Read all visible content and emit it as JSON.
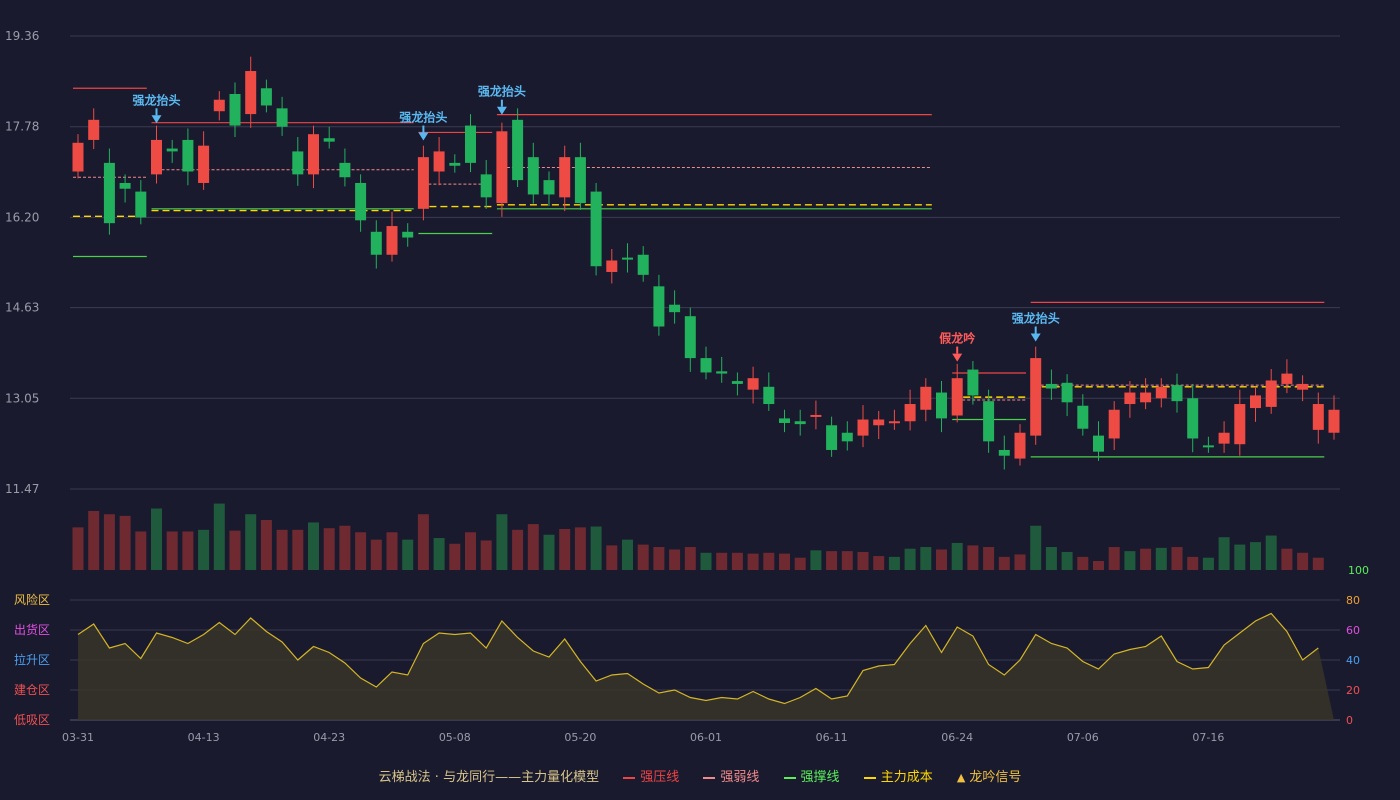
{
  "chart_data": {
    "type": "candlestick",
    "price_axis": {
      "ticks": [
        "19.36",
        "17.78",
        "16.20",
        "14.63",
        "13.05",
        "11.47"
      ],
      "range": [
        11.47,
        19.36
      ]
    },
    "x_tick_labels": [
      {
        "i": 0,
        "label": "03-31"
      },
      {
        "i": 8,
        "label": "04-13"
      },
      {
        "i": 16,
        "label": "04-23"
      },
      {
        "i": 24,
        "label": "05-08"
      },
      {
        "i": 32,
        "label": "05-20"
      },
      {
        "i": 40,
        "label": "06-01"
      },
      {
        "i": 48,
        "label": "06-11"
      },
      {
        "i": 56,
        "label": "06-24"
      },
      {
        "i": 64,
        "label": "07-06"
      },
      {
        "i": 72,
        "label": "07-16"
      }
    ],
    "candles": [
      [
        17.0,
        17.5,
        17.0,
        17.0
      ],
      [
        17.55,
        17.9,
        17.55,
        17.55
      ],
      [
        17.15,
        16.1,
        17.15,
        16.1
      ],
      [
        16.8,
        16.7,
        16.8,
        16.7
      ],
      [
        16.65,
        16.2,
        16.65,
        16.2
      ],
      [
        16.95,
        17.55,
        16.95,
        17.55
      ],
      [
        17.4,
        17.35,
        17.4,
        17.35
      ],
      [
        17.55,
        17.0,
        17.55,
        17.0
      ],
      [
        16.8,
        17.45,
        16.8,
        17.45
      ],
      [
        18.05,
        18.25,
        18.05,
        18.25
      ],
      [
        18.35,
        17.8,
        18.35,
        17.8
      ],
      [
        18.0,
        18.75,
        18.0,
        18.75
      ],
      [
        18.45,
        18.15,
        18.45,
        18.15
      ],
      [
        18.1,
        17.78,
        18.1,
        17.78
      ],
      [
        17.35,
        16.95,
        17.35,
        16.95
      ],
      [
        16.95,
        17.65,
        16.95,
        17.65
      ],
      [
        17.58,
        17.52,
        17.58,
        17.52
      ],
      [
        17.15,
        16.9,
        17.15,
        16.9
      ],
      [
        16.8,
        16.15,
        16.8,
        16.15
      ],
      [
        15.95,
        15.55,
        15.95,
        15.55
      ],
      [
        15.55,
        16.05,
        15.55,
        16.05
      ],
      [
        15.95,
        15.85,
        15.95,
        15.85
      ],
      [
        16.35,
        17.25,
        16.35,
        17.25
      ],
      [
        17.0,
        17.35,
        17.0,
        17.35
      ],
      [
        17.15,
        17.1,
        17.15,
        17.1
      ],
      [
        17.8,
        17.15,
        17.8,
        17.15
      ],
      [
        16.95,
        16.55,
        16.95,
        16.55
      ],
      [
        16.45,
        17.7,
        16.45,
        17.7
      ],
      [
        17.9,
        16.85,
        17.9,
        16.85
      ],
      [
        17.25,
        16.6,
        17.25,
        16.6
      ],
      [
        16.85,
        16.6,
        16.85,
        16.6
      ],
      [
        16.55,
        17.25,
        16.55,
        17.25
      ],
      [
        17.25,
        16.45,
        17.25,
        16.45
      ],
      [
        16.65,
        15.35,
        16.65,
        15.35
      ],
      [
        15.25,
        15.45,
        15.25,
        15.45
      ],
      [
        15.5,
        15.48,
        15.5,
        15.48
      ],
      [
        15.55,
        15.2,
        15.55,
        15.2
      ],
      [
        15.0,
        14.3,
        15.0,
        14.3
      ],
      [
        14.68,
        14.55,
        14.68,
        14.55
      ],
      [
        14.48,
        13.75,
        14.48,
        13.75
      ],
      [
        13.75,
        13.5,
        13.75,
        13.5
      ],
      [
        13.52,
        13.48,
        13.52,
        13.48
      ],
      [
        13.35,
        13.3,
        13.35,
        13.3
      ],
      [
        13.2,
        13.4,
        13.2,
        13.4
      ],
      [
        13.25,
        12.95,
        13.25,
        12.95
      ],
      [
        12.7,
        12.62,
        12.7,
        12.62
      ],
      [
        12.65,
        12.6,
        12.65,
        12.6
      ],
      [
        12.75,
        12.76,
        12.75,
        12.76
      ],
      [
        12.58,
        12.15,
        12.58,
        12.15
      ],
      [
        12.45,
        12.3,
        12.45,
        12.3
      ],
      [
        12.4,
        12.68,
        12.4,
        12.68
      ],
      [
        12.58,
        12.68,
        12.58,
        12.68
      ],
      [
        12.62,
        12.65,
        12.62,
        12.65
      ],
      [
        12.65,
        12.95,
        12.65,
        12.95
      ],
      [
        12.85,
        13.25,
        12.85,
        13.25
      ],
      [
        13.15,
        12.7,
        13.15,
        12.7
      ],
      [
        12.75,
        13.4,
        12.75,
        13.4
      ],
      [
        13.55,
        13.1,
        13.55,
        13.1
      ],
      [
        13.0,
        12.3,
        13.0,
        12.3
      ],
      [
        12.15,
        12.05,
        12.15,
        12.05
      ],
      [
        12.0,
        12.45,
        12.0,
        12.45
      ],
      [
        12.4,
        13.75,
        12.4,
        13.75
      ],
      [
        13.3,
        13.22,
        13.3,
        13.22
      ],
      [
        13.32,
        12.98,
        13.32,
        12.98
      ],
      [
        12.92,
        12.52,
        12.92,
        12.52
      ],
      [
        12.4,
        12.12,
        12.4,
        12.12
      ],
      [
        12.35,
        12.85,
        12.35,
        12.85
      ],
      [
        12.95,
        13.15,
        12.95,
        13.15
      ],
      [
        12.98,
        13.15,
        12.98,
        13.15
      ],
      [
        13.05,
        13.25,
        13.05,
        13.25
      ],
      [
        13.28,
        13.0,
        13.28,
        13.0
      ],
      [
        13.05,
        12.35,
        13.05,
        12.35
      ],
      [
        12.23,
        12.22,
        12.23,
        12.22
      ],
      [
        12.26,
        12.45,
        12.26,
        12.45
      ],
      [
        12.25,
        12.95,
        12.25,
        12.95
      ],
      [
        12.88,
        13.1,
        12.88,
        13.1
      ],
      [
        12.9,
        13.36,
        12.9,
        13.36
      ],
      [
        13.3,
        13.48,
        13.3,
        13.48
      ],
      [
        13.2,
        13.3,
        13.2,
        13.3
      ],
      [
        12.5,
        12.95,
        12.5,
        12.95
      ],
      [
        12.45,
        12.85,
        12.45,
        12.85
      ]
    ],
    "volume": [
      52,
      72,
      68,
      66,
      47,
      75,
      47,
      47,
      49,
      81,
      48,
      68,
      61,
      49,
      49,
      58,
      51,
      54,
      46,
      37,
      46,
      37,
      68,
      39,
      32,
      46,
      36,
      68,
      49,
      56,
      43,
      50,
      52,
      53,
      30,
      37,
      31,
      28,
      25,
      28,
      21,
      21,
      21,
      20,
      21,
      20,
      15,
      24,
      23,
      23,
      22,
      17,
      16,
      26,
      28,
      25,
      33,
      30,
      28,
      16,
      19,
      54,
      28,
      22,
      16,
      11,
      28,
      23,
      26,
      27,
      28,
      16,
      15,
      40,
      31,
      34,
      42,
      26,
      21,
      15
    ],
    "volume_red": [
      true,
      true,
      true,
      true,
      true,
      false,
      true,
      true,
      false,
      false,
      true,
      false,
      true,
      true,
      true,
      false,
      true,
      true,
      true,
      true,
      true,
      false,
      true,
      false,
      true,
      true,
      true,
      false,
      true,
      true,
      false,
      true,
      true,
      false,
      true,
      false,
      true,
      true,
      true,
      true,
      false,
      true,
      true,
      true,
      true,
      true,
      true,
      false,
      true,
      true,
      true,
      true,
      false,
      false,
      false,
      true,
      false,
      true,
      true,
      true,
      true,
      false,
      false,
      false,
      true,
      true,
      true,
      false,
      true,
      false,
      true,
      true,
      false,
      false,
      false,
      false,
      false,
      true,
      true,
      true
    ],
    "volume_axis_max": "100",
    "oscillator": [
      57,
      64,
      48,
      51,
      41,
      58,
      55,
      51,
      57,
      65,
      57,
      68,
      59,
      52,
      40,
      49,
      45,
      38,
      28,
      22,
      32,
      30,
      51,
      58,
      57,
      58,
      48,
      66,
      55,
      46,
      42,
      54,
      39,
      26,
      30,
      31,
      24,
      18,
      20,
      15,
      13,
      15,
      14,
      19,
      14,
      11,
      15,
      21,
      14,
      16,
      33,
      36,
      37,
      51,
      63,
      45,
      62,
      56,
      37,
      30,
      40,
      57,
      51,
      48,
      39,
      34,
      44,
      47,
      49,
      56,
      39,
      34,
      35,
      50,
      58,
      66,
      71,
      59,
      40,
      48
    ],
    "oscillator_axis": {
      "right_ticks": [
        "80",
        "60",
        "40",
        "20",
        "0"
      ],
      "left_zones": [
        "风险区",
        "出货区",
        "拉升区",
        "建仓区",
        "低吸区"
      ]
    },
    "levels": [
      {
        "type": "pressure",
        "y": 18.45,
        "from": 0,
        "to": 4
      },
      {
        "type": "weak",
        "y": 16.9,
        "from": 0,
        "to": 4
      },
      {
        "type": "cost",
        "y": 16.22,
        "from": 0,
        "to": 4
      },
      {
        "type": "support",
        "y": 15.52,
        "from": 0,
        "to": 4
      },
      {
        "type": "pressure",
        "y": 17.85,
        "from": 5,
        "to": 21
      },
      {
        "type": "weak",
        "y": 17.03,
        "from": 5,
        "to": 21
      },
      {
        "type": "cost",
        "y": 16.32,
        "from": 5,
        "to": 21
      },
      {
        "type": "support",
        "y": 16.35,
        "from": 5,
        "to": 21
      },
      {
        "type": "pressure",
        "y": 17.68,
        "from": 22,
        "to": 26
      },
      {
        "type": "weak",
        "y": 16.78,
        "from": 22,
        "to": 26
      },
      {
        "type": "cost",
        "y": 16.39,
        "from": 22,
        "to": 26
      },
      {
        "type": "support",
        "y": 15.92,
        "from": 22,
        "to": 26
      },
      {
        "type": "pressure",
        "y": 17.99,
        "from": 27,
        "to": 54
      },
      {
        "type": "weak",
        "y": 17.07,
        "from": 27,
        "to": 54
      },
      {
        "type": "cost",
        "y": 16.42,
        "from": 27,
        "to": 54
      },
      {
        "type": "support",
        "y": 16.35,
        "from": 27,
        "to": 54
      },
      {
        "type": "pressure",
        "y": 13.49,
        "from": 56,
        "to": 60
      },
      {
        "type": "cost",
        "y": 13.07,
        "from": 56,
        "to": 60
      },
      {
        "type": "weak",
        "y": 13.02,
        "from": 56,
        "to": 60
      },
      {
        "type": "support",
        "y": 12.68,
        "from": 56,
        "to": 60
      },
      {
        "type": "pressure",
        "y": 14.72,
        "from": 61,
        "to": 79
      },
      {
        "type": "weak",
        "y": 13.28,
        "from": 61,
        "to": 79
      },
      {
        "type": "cost",
        "y": 13.25,
        "from": 61,
        "to": 79
      },
      {
        "type": "support",
        "y": 12.03,
        "from": 61,
        "to": 79
      }
    ],
    "signals": [
      {
        "i": 5,
        "text": "强龙抬头",
        "kind": "strong"
      },
      {
        "i": 22,
        "text": "强龙抬头",
        "kind": "strong"
      },
      {
        "i": 27,
        "text": "强龙抬头",
        "kind": "strong"
      },
      {
        "i": 56,
        "text": "假龙吟",
        "kind": "fake"
      },
      {
        "i": 61,
        "text": "强龙抬头",
        "kind": "strong"
      }
    ],
    "legend": {
      "title": "云梯战法 · 与龙同行——主力量化模型",
      "items": [
        {
          "label": "强压线",
          "color": "#ee4444",
          "style": "solid"
        },
        {
          "label": "强弱线",
          "color": "#f08a8a",
          "style": "dashed"
        },
        {
          "label": "强撑线",
          "color": "#5aee5a",
          "style": "solid"
        },
        {
          "label": "主力成本",
          "color": "#ffd700",
          "style": "dashed"
        },
        {
          "label": "龙吟信号",
          "color": "#f0c040",
          "style": "triangle"
        }
      ]
    },
    "colors": {
      "up": "#ef4b45",
      "down": "#22b15c",
      "bg": "#191a2e",
      "grid": "#3a3b50",
      "osc": "#d4b526",
      "strong_signal": "#5ab8f0",
      "fake_signal": "#ff5a5a"
    }
  }
}
